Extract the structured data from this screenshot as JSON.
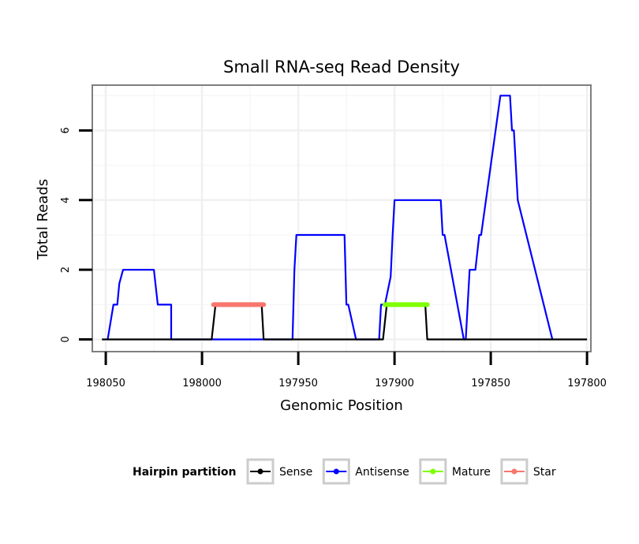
{
  "chart_data": {
    "type": "line",
    "title": "Small RNA-seq Read Density",
    "xlabel": "Genomic Position",
    "ylabel": "Total Reads",
    "x_reversed": true,
    "xlim": [
      198057,
      197798
    ],
    "ylim": [
      -0.35,
      7.3
    ],
    "x_ticks": [
      198050,
      198000,
      197950,
      197900,
      197850,
      197800
    ],
    "y_ticks": [
      0,
      2,
      4,
      6
    ],
    "grid": true,
    "legend": {
      "title": "Hairpin partition",
      "placement": "bottom",
      "entries": [
        {
          "label": "Sense",
          "color": "#000000"
        },
        {
          "label": "Antisense",
          "color": "#0000ff"
        },
        {
          "label": "Mature",
          "color": "#7fff00"
        },
        {
          "label": "Star",
          "color": "#f8766d"
        }
      ]
    },
    "series": [
      {
        "name": "Antisense",
        "color": "#0000ff",
        "x": [
          198049,
          198046,
          198044,
          198043,
          198041,
          198025,
          198023,
          198016,
          198016,
          197953,
          197952,
          197951,
          197926,
          197925,
          197924,
          197920,
          197908,
          197907,
          197905,
          197902,
          197901,
          197900,
          197876,
          197875,
          197874,
          197864,
          197863,
          197861,
          197858,
          197856,
          197855,
          197845,
          197844,
          197843,
          197840,
          197839,
          197838,
          197836,
          197818
        ],
        "y": [
          0,
          1,
          1,
          1.6,
          2,
          2,
          1,
          1,
          0,
          0,
          2,
          3,
          3,
          1,
          1,
          0,
          0,
          1,
          1,
          1.8,
          3,
          4,
          4,
          3,
          3,
          0,
          0,
          2,
          2,
          3,
          3,
          7,
          7,
          7,
          7,
          6,
          6,
          4,
          0
        ]
      },
      {
        "name": "Sense",
        "color": "#000000",
        "x": [
          198052,
          197995,
          197993,
          197969,
          197968,
          197906,
          197904,
          197884,
          197883,
          197800
        ],
        "y": [
          0,
          0,
          1,
          1,
          0,
          0,
          1,
          1,
          0,
          0
        ]
      },
      {
        "name": "Mature",
        "color": "#7fff00",
        "x": [
          197905,
          197883
        ],
        "y": [
          1,
          1
        ]
      },
      {
        "name": "Star",
        "color": "#f8766d",
        "x": [
          197994,
          197968
        ],
        "y": [
          1,
          1
        ]
      }
    ]
  }
}
